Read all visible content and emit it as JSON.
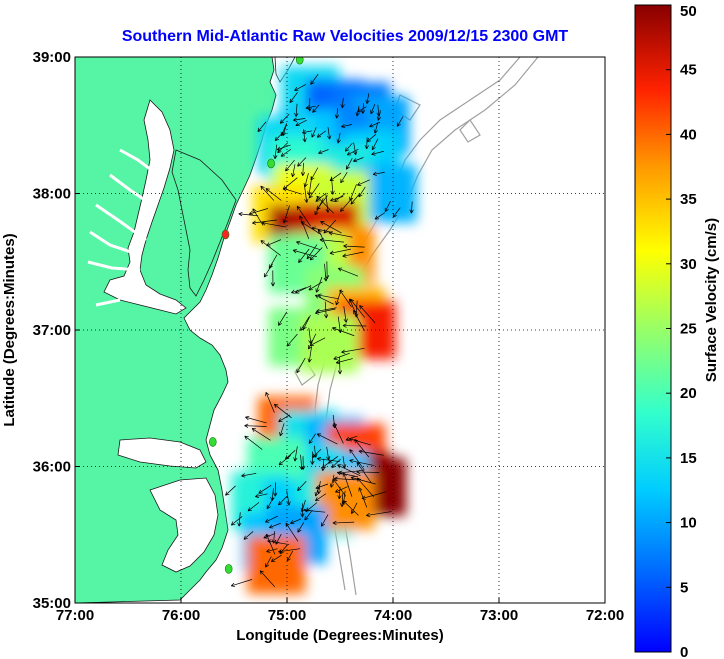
{
  "chart_data": {
    "type": "heatmap",
    "title": "Southern Mid-Atlantic Raw Velocities 2009/12/15 2300 GMT",
    "xlabel": "Longitude (Degrees:Minutes)",
    "ylabel": "Latitude (Degrees:Minutes)",
    "colorbar_label": "Surface Velocity (cm/s)",
    "x_ticks": [
      {
        "value": -77,
        "label": "77:00"
      },
      {
        "value": -76,
        "label": "76:00"
      },
      {
        "value": -75,
        "label": "75:00"
      },
      {
        "value": -74,
        "label": "74:00"
      },
      {
        "value": -73,
        "label": "73:00"
      },
      {
        "value": -72,
        "label": "72:00"
      }
    ],
    "y_ticks": [
      {
        "value": 35,
        "label": "35:00"
      },
      {
        "value": 36,
        "label": "36:00"
      },
      {
        "value": 37,
        "label": "37:00"
      },
      {
        "value": 38,
        "label": "38:00"
      },
      {
        "value": 39,
        "label": "39:00"
      }
    ],
    "xlim": [
      -77,
      -72
    ],
    "ylim": [
      35,
      39
    ],
    "color_ticks": [
      {
        "value": 0,
        "label": "0"
      },
      {
        "value": 5,
        "label": "5"
      },
      {
        "value": 10,
        "label": "10"
      },
      {
        "value": 15,
        "label": "15"
      },
      {
        "value": 20,
        "label": "20"
      },
      {
        "value": 25,
        "label": "25"
      },
      {
        "value": 30,
        "label": "30"
      },
      {
        "value": 35,
        "label": "35"
      },
      {
        "value": 40,
        "label": "40"
      },
      {
        "value": 45,
        "label": "45"
      },
      {
        "value": 50,
        "label": "50"
      }
    ],
    "clim": [
      0,
      50
    ],
    "colormap": "jet",
    "grid": true,
    "grid_style": "dotted",
    "land_color": "#55f5a5",
    "bathymetry_color": "#a0a0a0",
    "arrow_color": "#000000",
    "station_color": "#33dd33",
    "station_alt_color": "#ff2222",
    "speed_cells": [
      {
        "lon": -74.78,
        "lat": 38.72,
        "v": 14
      },
      {
        "lon": -74.55,
        "lat": 38.62,
        "v": 6
      },
      {
        "lon": -74.3,
        "lat": 38.6,
        "v": 7
      },
      {
        "lon": -74.12,
        "lat": 38.5,
        "v": 10
      },
      {
        "lon": -74.5,
        "lat": 38.42,
        "v": 8
      },
      {
        "lon": -74.8,
        "lat": 38.4,
        "v": 12
      },
      {
        "lon": -75.0,
        "lat": 38.35,
        "v": 14
      },
      {
        "lon": -74.2,
        "lat": 38.25,
        "v": 13
      },
      {
        "lon": -74.9,
        "lat": 38.2,
        "v": 18
      },
      {
        "lon": -74.45,
        "lat": 38.15,
        "v": 16
      },
      {
        "lon": -74.05,
        "lat": 38.0,
        "v": 11
      },
      {
        "lon": -74.85,
        "lat": 38.0,
        "v": 30
      },
      {
        "lon": -74.5,
        "lat": 37.95,
        "v": 28
      },
      {
        "lon": -75.05,
        "lat": 37.85,
        "v": 33
      },
      {
        "lon": -74.9,
        "lat": 37.7,
        "v": 48
      },
      {
        "lon": -74.6,
        "lat": 37.72,
        "v": 46
      },
      {
        "lon": -74.45,
        "lat": 37.55,
        "v": 38
      },
      {
        "lon": -74.7,
        "lat": 37.5,
        "v": 27
      },
      {
        "lon": -74.9,
        "lat": 37.48,
        "v": 22
      },
      {
        "lon": -74.55,
        "lat": 37.25,
        "v": 24
      },
      {
        "lon": -74.35,
        "lat": 37.1,
        "v": 36
      },
      {
        "lon": -74.25,
        "lat": 37.0,
        "v": 44
      },
      {
        "lon": -74.9,
        "lat": 36.95,
        "v": 23
      },
      {
        "lon": -74.6,
        "lat": 36.9,
        "v": 26
      },
      {
        "lon": -75.0,
        "lat": 36.3,
        "v": 40
      },
      {
        "lon": -74.8,
        "lat": 36.2,
        "v": 15
      },
      {
        "lon": -74.55,
        "lat": 36.15,
        "v": 11
      },
      {
        "lon": -74.35,
        "lat": 36.1,
        "v": 42
      },
      {
        "lon": -74.3,
        "lat": 35.9,
        "v": 49
      },
      {
        "lon": -74.15,
        "lat": 35.85,
        "v": 50
      },
      {
        "lon": -74.5,
        "lat": 35.9,
        "v": 12
      },
      {
        "lon": -74.75,
        "lat": 35.95,
        "v": 14
      },
      {
        "lon": -75.1,
        "lat": 36.0,
        "v": 20
      },
      {
        "lon": -75.25,
        "lat": 35.75,
        "v": 17
      },
      {
        "lon": -74.95,
        "lat": 35.7,
        "v": 13
      },
      {
        "lon": -74.65,
        "lat": 35.7,
        "v": 16
      },
      {
        "lon": -74.45,
        "lat": 35.75,
        "v": 38
      },
      {
        "lon": -75.15,
        "lat": 35.45,
        "v": 12
      },
      {
        "lon": -74.9,
        "lat": 35.5,
        "v": 10
      },
      {
        "lon": -75.1,
        "lat": 35.28,
        "v": 40
      }
    ],
    "stations": [
      {
        "lon": -74.88,
        "lat": 38.98,
        "kind": "green"
      },
      {
        "lon": -75.15,
        "lat": 38.22,
        "kind": "green"
      },
      {
        "lon": -75.58,
        "lat": 37.7,
        "kind": "red"
      },
      {
        "lon": -75.7,
        "lat": 36.18,
        "kind": "green"
      },
      {
        "lon": -75.55,
        "lat": 35.25,
        "kind": "green"
      }
    ]
  }
}
